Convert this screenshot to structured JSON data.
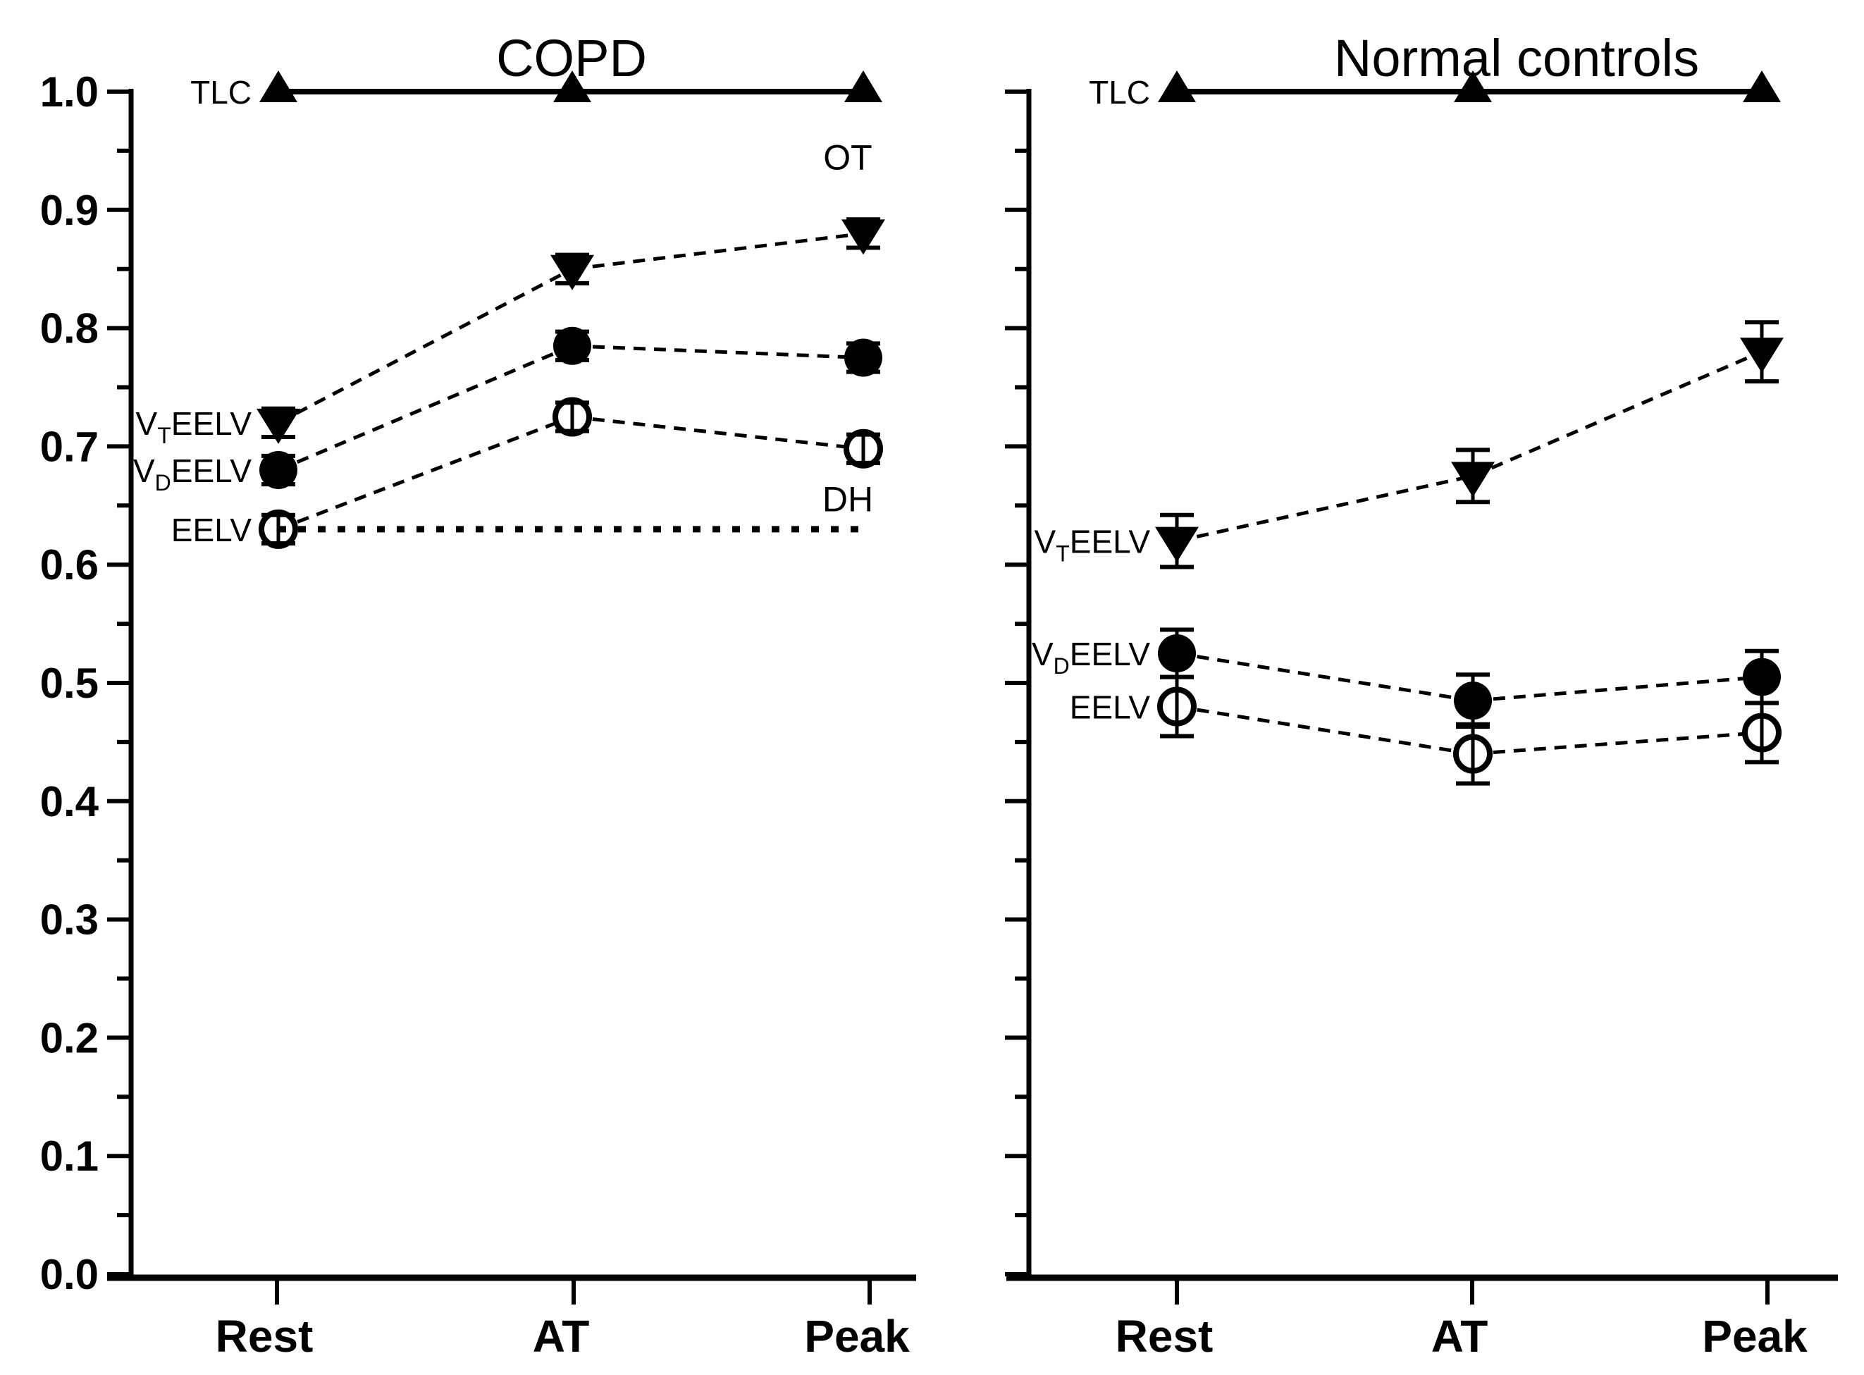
{
  "figure": {
    "background": "#ffffff",
    "ink_color": "#000000",
    "x_category_labels": [
      "Rest",
      "AT",
      "Peak"
    ],
    "y_tick_labels": [
      "0.0",
      "0.1",
      "0.2",
      "0.3",
      "0.4",
      "0.5",
      "0.6",
      "0.7",
      "0.8",
      "0.9",
      "1.0"
    ]
  },
  "chart_data": [
    {
      "type": "line",
      "title": "COPD",
      "categories": [
        "Rest",
        "AT",
        "Peak"
      ],
      "ylim": [
        0.0,
        1.0
      ],
      "y_major_step": 0.1,
      "y_minor_step": 0.05,
      "show_y_tick_labels": true,
      "grid": false,
      "legend_position": "inline-left-of-first-point",
      "series": [
        {
          "name": "TLC",
          "label_pre": "TLC",
          "label_sub": "",
          "label_post": "",
          "marker": "triangle-up",
          "filled": true,
          "line_style": "solid",
          "values": [
            1.0,
            1.0,
            1.0
          ],
          "errors": [
            0,
            0,
            0
          ]
        },
        {
          "name": "VT-EELV",
          "label_pre": "V",
          "label_sub": "T",
          "label_post": "EELV",
          "marker": "triangle-down",
          "filled": true,
          "line_style": "dashed",
          "values": [
            0.72,
            0.85,
            0.88
          ],
          "errors": [
            0.012,
            0.012,
            0.012
          ]
        },
        {
          "name": "VD-EELV",
          "label_pre": "V",
          "label_sub": "D",
          "label_post": "EELV",
          "marker": "circle",
          "filled": true,
          "line_style": "dashed",
          "values": [
            0.68,
            0.785,
            0.775
          ],
          "errors": [
            0.012,
            0.012,
            0.012
          ]
        },
        {
          "name": "EELV",
          "label_pre": "EELV",
          "label_sub": "",
          "label_post": "",
          "marker": "circle",
          "filled": false,
          "line_style": "dashed",
          "values": [
            0.63,
            0.725,
            0.698
          ],
          "errors": [
            0.012,
            0.012,
            0.012
          ]
        }
      ],
      "reference_line": {
        "y": 0.63,
        "style": "dotted",
        "from_category": "Rest",
        "to_category": "Peak"
      },
      "annotations": [
        {
          "text": "OT",
          "category": "Peak",
          "y": 0.934
        },
        {
          "text": "DH",
          "category": "Peak",
          "y": 0.645
        }
      ]
    },
    {
      "type": "line",
      "title": "Normal controls",
      "categories": [
        "Rest",
        "AT",
        "Peak"
      ],
      "ylim": [
        0.0,
        1.0
      ],
      "y_major_step": 0.1,
      "y_minor_step": 0.05,
      "show_y_tick_labels": false,
      "grid": false,
      "legend_position": "inline-left-of-first-point",
      "series": [
        {
          "name": "TLC",
          "label_pre": "TLC",
          "label_sub": "",
          "label_post": "",
          "marker": "triangle-up",
          "filled": true,
          "line_style": "solid",
          "values": [
            1.0,
            1.0,
            1.0
          ],
          "errors": [
            0,
            0,
            0
          ]
        },
        {
          "name": "VT-EELV",
          "label_pre": "V",
          "label_sub": "T",
          "label_post": "EELV",
          "marker": "triangle-down",
          "filled": true,
          "line_style": "dashed",
          "values": [
            0.62,
            0.675,
            0.78
          ],
          "errors": [
            0.022,
            0.022,
            0.025
          ]
        },
        {
          "name": "VD-EELV",
          "label_pre": "V",
          "label_sub": "D",
          "label_post": "EELV",
          "marker": "circle",
          "filled": true,
          "line_style": "dashed",
          "values": [
            0.525,
            0.485,
            0.505
          ],
          "errors": [
            0.02,
            0.022,
            0.022
          ]
        },
        {
          "name": "EELV",
          "label_pre": "EELV",
          "label_sub": "",
          "label_post": "",
          "marker": "circle",
          "filled": false,
          "line_style": "dashed",
          "values": [
            0.48,
            0.44,
            0.458
          ],
          "errors": [
            0.025,
            0.025,
            0.025
          ]
        }
      ],
      "reference_line": null,
      "annotations": []
    }
  ]
}
